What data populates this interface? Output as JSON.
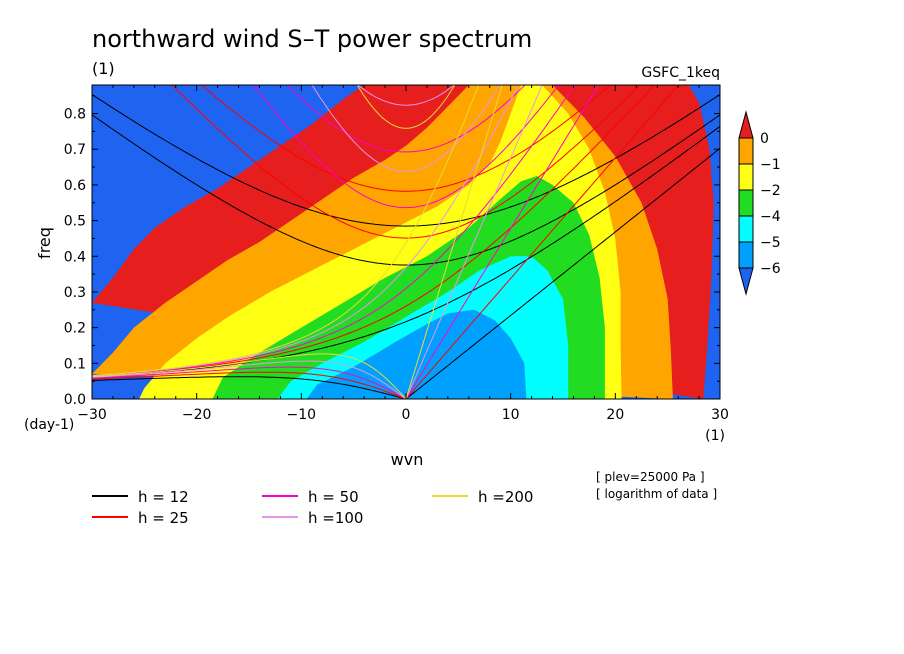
{
  "chart_data": {
    "type": "heatmap",
    "title": "northward wind S–T power spectrum",
    "subtitle_left": "(1)",
    "subtitle_right": "GSFC_1keq",
    "xlabel": "wvn",
    "ylabel": "freq",
    "x_unit": "(1)",
    "y_unit": "(day-1)",
    "xlim": [
      -30,
      30
    ],
    "ylim": [
      0,
      0.88
    ],
    "x_ticks": [
      -30,
      -20,
      -10,
      0,
      10,
      20,
      30
    ],
    "y_ticks": [
      0.0,
      0.1,
      0.2,
      0.3,
      0.4,
      0.5,
      0.6,
      0.7,
      0.8
    ],
    "colorbar": {
      "labels": [
        "0",
        "−1",
        "−2",
        "−4",
        "−5",
        "−6"
      ],
      "colors": [
        "#e61e1e",
        "#ffa500",
        "#ffff14",
        "#22dc22",
        "#00ffff",
        "#00a0ff",
        "#1e64f0"
      ]
    },
    "levels": [
      {
        "label": "0",
        "color": "#e61e1e"
      },
      {
        "label": "-1",
        "color": "#ffa500"
      },
      {
        "label": "-2",
        "color": "#ffff14"
      },
      {
        "label": "-4",
        "color": "#22dc22"
      },
      {
        "label": "-5",
        "color": "#00ffff"
      },
      {
        "label": "-6",
        "color": "#00a0ff"
      }
    ],
    "dispersion_curves": [
      {
        "name": "h = 12",
        "h": 12,
        "color": "#000000"
      },
      {
        "name": "h = 25",
        "h": 25,
        "color": "#ff0000"
      },
      {
        "name": "h = 50",
        "h": 50,
        "color": "#ff00c8"
      },
      {
        "name": "h =100",
        "h": 100,
        "color": "#e696e6"
      },
      {
        "name": "h =200",
        "h": 200,
        "color": "#e6dc32"
      }
    ],
    "annotations": [
      "[ plev=25000 Pa ]",
      "[ logarithm of data ]"
    ]
  }
}
